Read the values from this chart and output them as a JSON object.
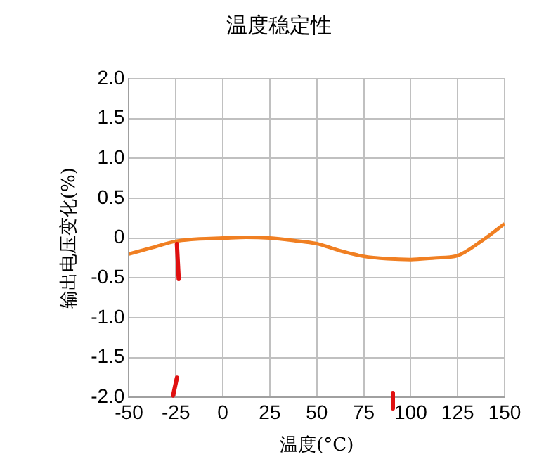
{
  "chart_data": {
    "type": "line",
    "title": "温度稳定性",
    "xlabel": "温度(°C)",
    "ylabel": "输出电压变化(%)",
    "x": [
      -50,
      -37.5,
      -25,
      -12.5,
      0,
      12.5,
      25,
      37.5,
      50,
      62.5,
      75,
      87.5,
      100,
      112.5,
      125,
      137.5,
      150
    ],
    "series": [
      {
        "color": "#f07f22",
        "values": [
          -0.2,
          -0.12,
          -0.04,
          -0.01,
          0,
          0.01,
          0,
          -0.03,
          -0.07,
          -0.16,
          -0.23,
          -0.26,
          -0.27,
          -0.25,
          -0.22,
          -0.04,
          0.18
        ]
      }
    ],
    "xlim": [
      -50,
      150
    ],
    "xticks": [
      -50,
      -25,
      0,
      25,
      50,
      75,
      100,
      125,
      150
    ],
    "ylim": [
      -2,
      2
    ],
    "yticks": [
      {
        "value": -2,
        "label": "-2.0"
      },
      {
        "value": -1.5,
        "label": "-1.5"
      },
      {
        "value": -1,
        "label": "-1.0"
      },
      {
        "value": -0.5,
        "label": "-0.5"
      },
      0,
      0.5,
      {
        "value": 1,
        "label": "1.0"
      },
      1.5,
      {
        "value": 2,
        "label": "2.0"
      }
    ],
    "grid": true,
    "legend": false,
    "marker": "none",
    "line_style": "solid"
  }
}
